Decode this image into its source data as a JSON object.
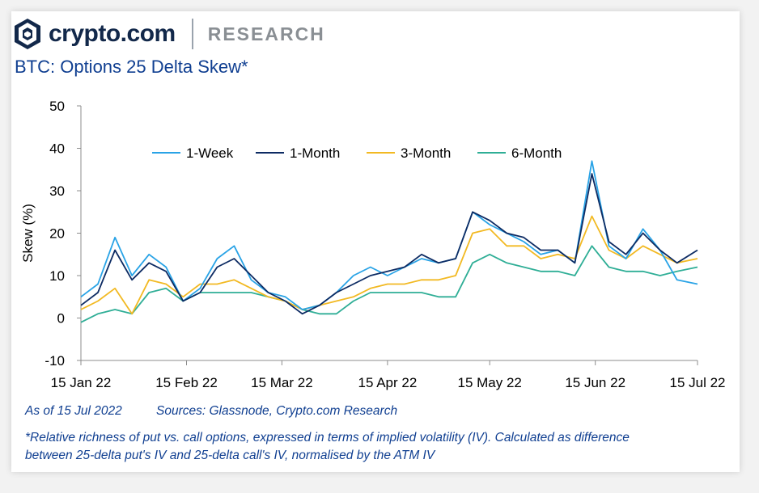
{
  "header": {
    "brand": "crypto.com",
    "section": "RESEARCH",
    "title": "BTC: Options 25 Delta Skew*"
  },
  "footer": {
    "as_of": "As of 15 Jul 2022",
    "sources": "Sources: Glassnode, Crypto.com Research",
    "note_line1": "*Relative richness of put vs. call options, expressed in terms of implied volatility (IV). Calculated as difference",
    "note_line2": "between 25-delta put's IV and 25-delta call's IV, normalised by the ATM IV"
  },
  "colors": {
    "title": "#103f91",
    "brand": "#12284a",
    "week": "#29a3e6",
    "month1": "#0d2b63",
    "month3": "#f2b922",
    "month6": "#2fae96"
  },
  "chart_data": {
    "type": "line",
    "title": "BTC: Options 25 Delta Skew*",
    "ylabel": "Skew (%)",
    "xlabel": "",
    "ylim": [
      -10,
      50
    ],
    "yticks": [
      -10,
      0,
      10,
      20,
      30,
      40,
      50
    ],
    "xticks": [
      "15 Jan 22",
      "15 Feb 22",
      "15 Mar 22",
      "15 Apr 22",
      "15 May 22",
      "15 Jun 22",
      "15 Jul 22"
    ],
    "legend_position": "top-center",
    "x": [
      "2022-01-15",
      "2022-01-20",
      "2022-01-25",
      "2022-01-30",
      "2022-02-04",
      "2022-02-09",
      "2022-02-14",
      "2022-02-19",
      "2022-02-24",
      "2022-03-01",
      "2022-03-06",
      "2022-03-11",
      "2022-03-16",
      "2022-03-21",
      "2022-03-26",
      "2022-03-31",
      "2022-04-05",
      "2022-04-10",
      "2022-04-15",
      "2022-04-20",
      "2022-04-25",
      "2022-04-30",
      "2022-05-05",
      "2022-05-10",
      "2022-05-15",
      "2022-05-20",
      "2022-05-25",
      "2022-05-30",
      "2022-06-04",
      "2022-06-09",
      "2022-06-14",
      "2022-06-19",
      "2022-06-24",
      "2022-06-29",
      "2022-07-04",
      "2022-07-09",
      "2022-07-15"
    ],
    "series": [
      {
        "name": "1-Week",
        "values": [
          5,
          8,
          19,
          10,
          15,
          12,
          4,
          7,
          14,
          17,
          9,
          6,
          5,
          2,
          3,
          6,
          10,
          12,
          10,
          12,
          14,
          13,
          14,
          25,
          22,
          20,
          18,
          15,
          16,
          13,
          37,
          17,
          14,
          21,
          16,
          9,
          8
        ]
      },
      {
        "name": "1-Month",
        "values": [
          3,
          6,
          16,
          9,
          13,
          11,
          4,
          6,
          12,
          14,
          10,
          6,
          4,
          1,
          3,
          6,
          8,
          10,
          11,
          12,
          15,
          13,
          14,
          25,
          23,
          20,
          19,
          16,
          16,
          13,
          34,
          18,
          15,
          20,
          16,
          13,
          16
        ]
      },
      {
        "name": "3-Month",
        "values": [
          2,
          4,
          7,
          1,
          9,
          8,
          5,
          8,
          8,
          9,
          7,
          5,
          4,
          2,
          3,
          4,
          5,
          7,
          8,
          8,
          9,
          9,
          10,
          20,
          21,
          17,
          17,
          14,
          15,
          14,
          24,
          16,
          14,
          17,
          15,
          13,
          14
        ]
      },
      {
        "name": "6-Month",
        "values": [
          -1,
          1,
          2,
          1,
          6,
          7,
          4,
          6,
          6,
          6,
          6,
          5,
          4,
          2,
          1,
          1,
          4,
          6,
          6,
          6,
          6,
          5,
          5,
          13,
          15,
          13,
          12,
          11,
          11,
          10,
          17,
          12,
          11,
          11,
          10,
          11,
          12
        ]
      }
    ]
  }
}
